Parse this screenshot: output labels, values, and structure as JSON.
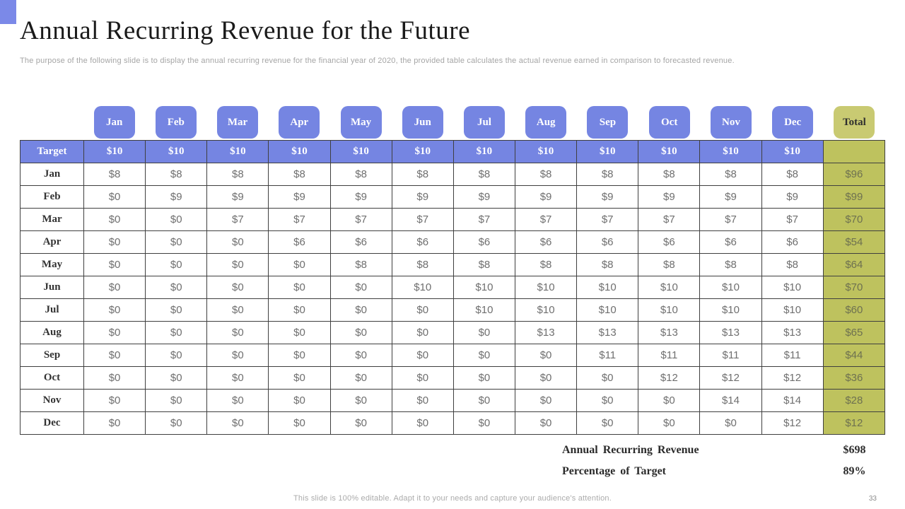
{
  "slide": {
    "title": "Annual Recurring Revenue for the Future",
    "subtitle": "The purpose of the following slide is to display the annual recurring revenue for the financial year of 2020, the provided table calculates the actual revenue earned in comparison to forecasted revenue.",
    "footer_note": "This slide is 100% editable. Adapt it to your needs and capture your audience's attention.",
    "page_number": "33"
  },
  "colors": {
    "accent_blue": "#7585e2",
    "accent_olive_tab": "#c9ca72",
    "accent_olive_cell": "#bec25e",
    "grid_border": "#3f3f3f"
  },
  "table": {
    "month_headers": [
      "Jan",
      "Feb",
      "Mar",
      "Apr",
      "May",
      "Jun",
      "Jul",
      "Aug",
      "Sep",
      "Oct",
      "Nov",
      "Dec"
    ],
    "total_header": "Total",
    "target": {
      "label": "Target",
      "values": [
        "$10",
        "$10",
        "$10",
        "$10",
        "$10",
        "$10",
        "$10",
        "$10",
        "$10",
        "$10",
        "$10",
        "$10"
      ],
      "total": ""
    },
    "rows": [
      {
        "label": "Jan",
        "values": [
          "$8",
          "$8",
          "$8",
          "$8",
          "$8",
          "$8",
          "$8",
          "$8",
          "$8",
          "$8",
          "$8",
          "$8"
        ],
        "total": "$96"
      },
      {
        "label": "Feb",
        "values": [
          "$0",
          "$9",
          "$9",
          "$9",
          "$9",
          "$9",
          "$9",
          "$9",
          "$9",
          "$9",
          "$9",
          "$9"
        ],
        "total": "$99"
      },
      {
        "label": "Mar",
        "values": [
          "$0",
          "$0",
          "$7",
          "$7",
          "$7",
          "$7",
          "$7",
          "$7",
          "$7",
          "$7",
          "$7",
          "$7"
        ],
        "total": "$70"
      },
      {
        "label": "Apr",
        "values": [
          "$0",
          "$0",
          "$0",
          "$6",
          "$6",
          "$6",
          "$6",
          "$6",
          "$6",
          "$6",
          "$6",
          "$6"
        ],
        "total": "$54"
      },
      {
        "label": "May",
        "values": [
          "$0",
          "$0",
          "$0",
          "$0",
          "$8",
          "$8",
          "$8",
          "$8",
          "$8",
          "$8",
          "$8",
          "$8"
        ],
        "total": "$64"
      },
      {
        "label": "Jun",
        "values": [
          "$0",
          "$0",
          "$0",
          "$0",
          "$0",
          "$10",
          "$10",
          "$10",
          "$10",
          "$10",
          "$10",
          "$10"
        ],
        "total": "$70"
      },
      {
        "label": "Jul",
        "values": [
          "$0",
          "$0",
          "$0",
          "$0",
          "$0",
          "$0",
          "$10",
          "$10",
          "$10",
          "$10",
          "$10",
          "$10"
        ],
        "total": "$60"
      },
      {
        "label": "Aug",
        "values": [
          "$0",
          "$0",
          "$0",
          "$0",
          "$0",
          "$0",
          "$0",
          "$13",
          "$13",
          "$13",
          "$13",
          "$13"
        ],
        "total": "$65"
      },
      {
        "label": "Sep",
        "values": [
          "$0",
          "$0",
          "$0",
          "$0",
          "$0",
          "$0",
          "$0",
          "$0",
          "$11",
          "$11",
          "$11",
          "$11"
        ],
        "total": "$44"
      },
      {
        "label": "Oct",
        "values": [
          "$0",
          "$0",
          "$0",
          "$0",
          "$0",
          "$0",
          "$0",
          "$0",
          "$0",
          "$12",
          "$12",
          "$12"
        ],
        "total": "$36"
      },
      {
        "label": "Nov",
        "values": [
          "$0",
          "$0",
          "$0",
          "$0",
          "$0",
          "$0",
          "$0",
          "$0",
          "$0",
          "$0",
          "$14",
          "$14"
        ],
        "total": "$28"
      },
      {
        "label": "Dec",
        "values": [
          "$0",
          "$0",
          "$0",
          "$0",
          "$0",
          "$0",
          "$0",
          "$0",
          "$0",
          "$0",
          "$0",
          "$12"
        ],
        "total": "$12"
      }
    ]
  },
  "summary": {
    "arr_label": "Annual Recurring Revenue",
    "arr_value": "$698",
    "pot_label": "Percentage of Target",
    "pot_value": "89%"
  }
}
